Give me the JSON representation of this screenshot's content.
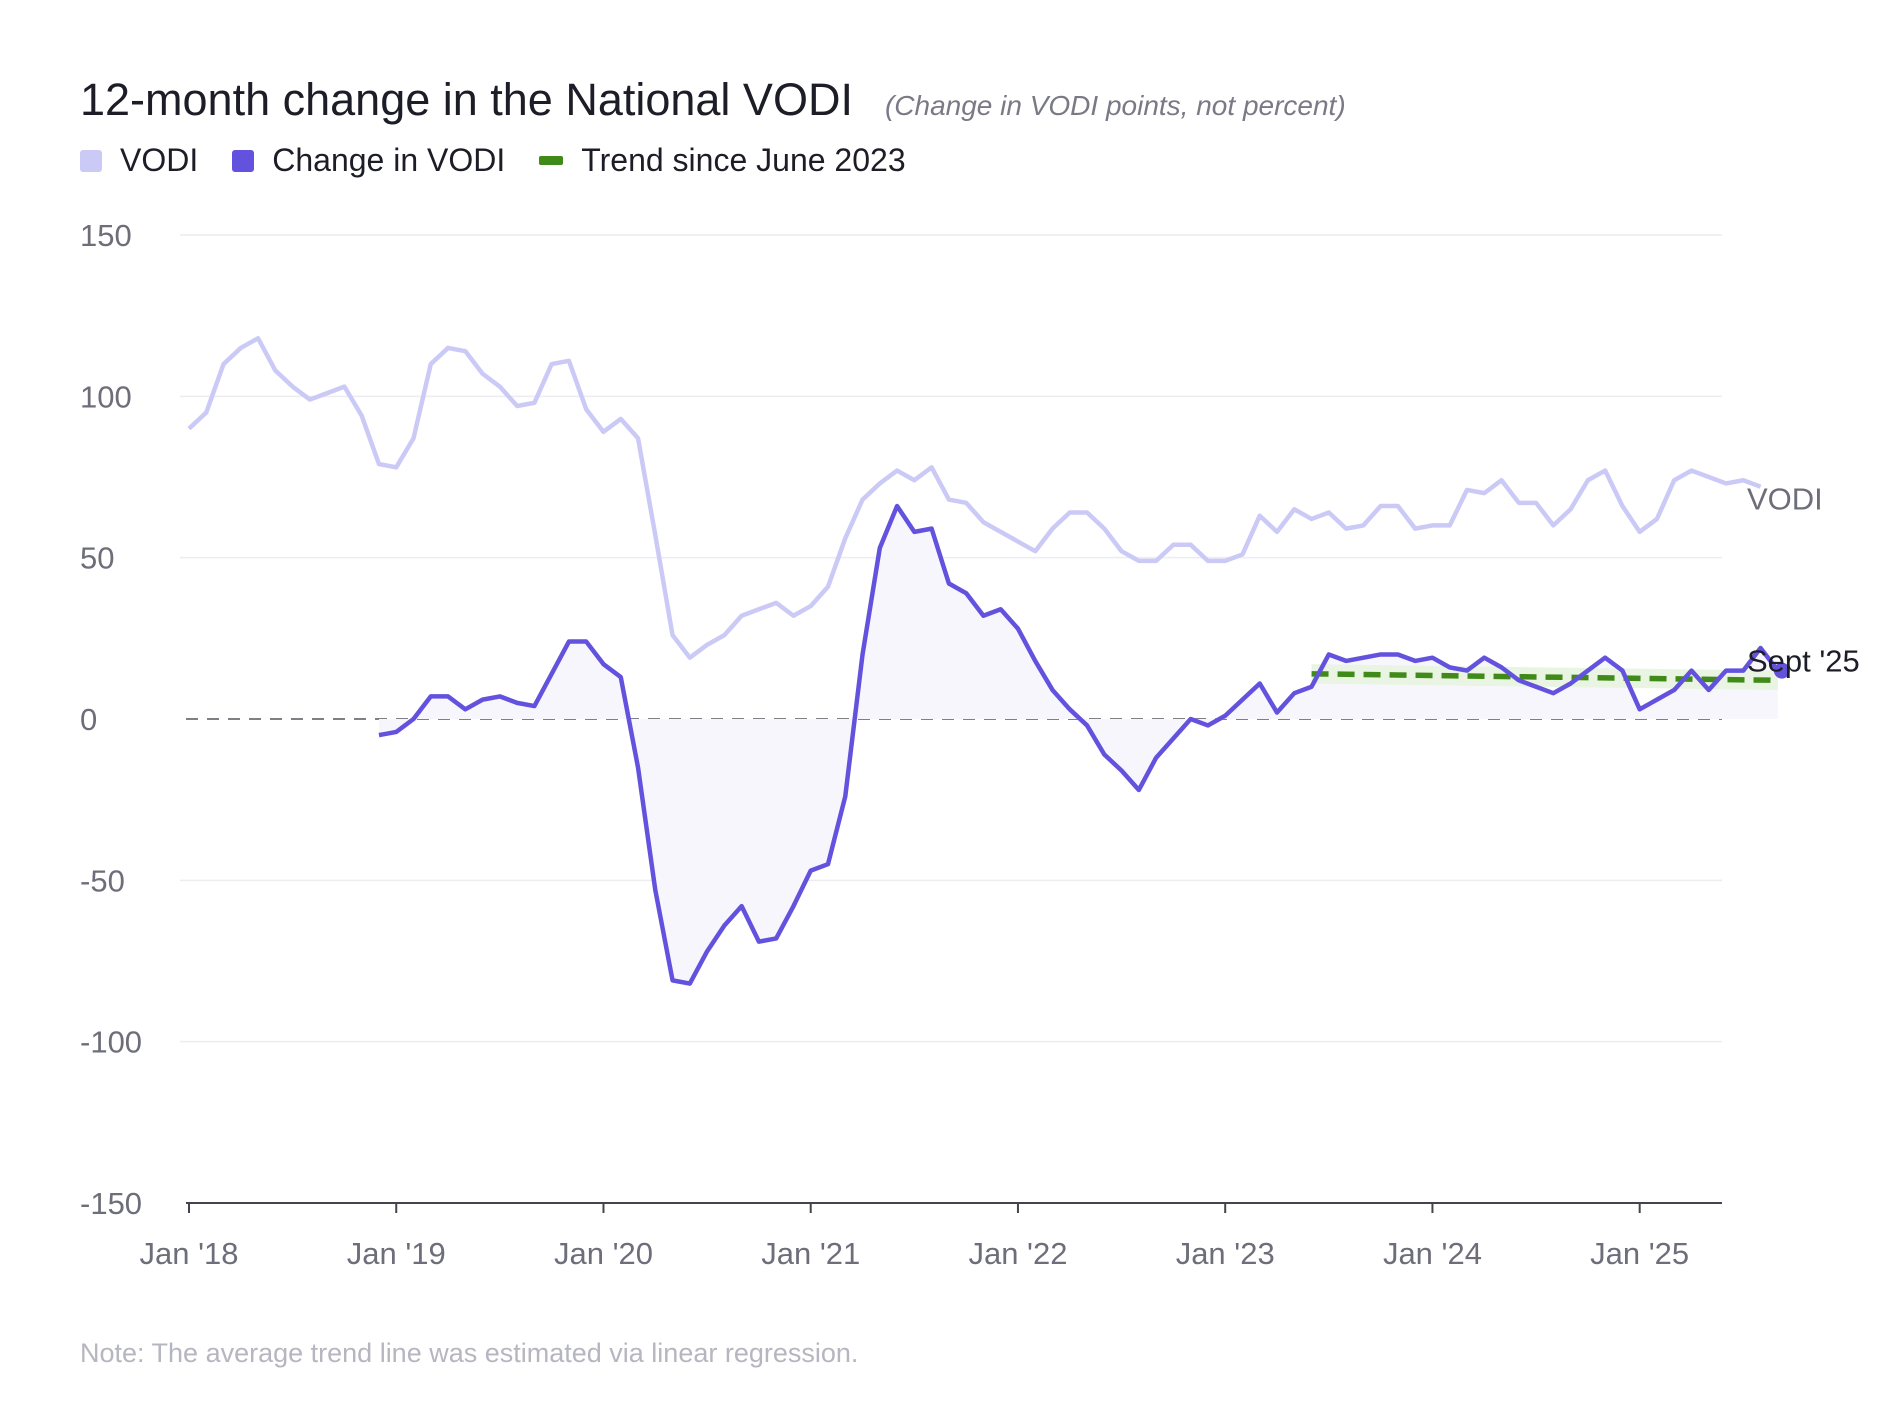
{
  "title": "12-month change in the National VODI",
  "subtitle": "(Change in VODI points, not percent)",
  "legend": [
    {
      "label": "VODI",
      "color": "#cbcaf7",
      "kind": "square"
    },
    {
      "label": "Change in VODI",
      "color": "#6352dd",
      "kind": "square"
    },
    {
      "label": "Trend since June 2023",
      "color": "#3f8a19",
      "kind": "line"
    }
  ],
  "note": "Note: The average trend line was estimated via linear regression.",
  "chart_data": {
    "type": "line",
    "ylim": [
      -150,
      150
    ],
    "y_ticks": [
      "150",
      "100",
      "50",
      "0",
      "-50",
      "-100",
      "-150"
    ],
    "x_ticks": [
      {
        "label": "Jan '18",
        "x": "2018-01"
      },
      {
        "label": "Jan '19",
        "x": "2019-01"
      },
      {
        "label": "Jan '20",
        "x": "2020-01"
      },
      {
        "label": "Jan '21",
        "x": "2021-01"
      },
      {
        "label": "Jan '22",
        "x": "2022-01"
      },
      {
        "label": "Jan '23",
        "x": "2023-01"
      },
      {
        "label": "Jan '24",
        "x": "2024-01"
      },
      {
        "label": "Jan '25",
        "x": "2025-01"
      }
    ],
    "xlim": [
      "2018-01",
      "2025-09"
    ],
    "grid": true,
    "zero_line": "dashed",
    "series": [
      {
        "name": "VODI",
        "color": "#cbcaf7",
        "end_label": "VODI",
        "x_start": "2018-01",
        "values": [
          90,
          95,
          110,
          115,
          118,
          108,
          103,
          99,
          101,
          103,
          94,
          79,
          78,
          87,
          110,
          115,
          114,
          107,
          103,
          97,
          98,
          110,
          111,
          96,
          89,
          93,
          87,
          57,
          26,
          19,
          23,
          26,
          32,
          34,
          36,
          32,
          35,
          41,
          56,
          68,
          73,
          77,
          74,
          78,
          68,
          67,
          61,
          58,
          55,
          52,
          59,
          64,
          64,
          59,
          52,
          49,
          49,
          54,
          54,
          49,
          49,
          51,
          63,
          58,
          65,
          62,
          64,
          59,
          60,
          66,
          66,
          59,
          60,
          60,
          71,
          70,
          74,
          67,
          67,
          60,
          65,
          74,
          77,
          66,
          58,
          62,
          74,
          77,
          75,
          73,
          74,
          72
        ]
      },
      {
        "name": "Change in VODI",
        "color": "#6352dd",
        "end_label": "Sept '25",
        "x_start": "2018-12",
        "values": [
          -5,
          -4,
          0,
          7,
          7,
          3,
          6,
          7,
          5,
          4,
          14,
          24,
          24,
          17,
          13,
          -15,
          -53,
          -81,
          -82,
          -72,
          -64,
          -58,
          -69,
          -68,
          -58,
          -47,
          -45,
          -24,
          20,
          53,
          66,
          58,
          59,
          42,
          39,
          32,
          34,
          28,
          18,
          9,
          3,
          -2,
          -11,
          -16,
          -22,
          -12,
          -6,
          0,
          -2,
          1,
          6,
          11,
          2,
          8,
          10,
          20,
          18,
          19,
          20,
          20,
          18,
          19,
          16,
          15,
          19,
          16,
          12,
          10,
          8,
          11,
          15,
          19,
          15,
          3,
          6,
          9,
          15,
          9,
          15,
          15,
          22,
          15
        ],
        "fill": "#f7f6fd"
      },
      {
        "name": "Trend since June 2023",
        "color": "#3f8a19",
        "style": "dashed",
        "x": [
          "2023-06",
          "2025-09"
        ],
        "values": [
          14,
          12
        ],
        "band_color": "#e9f4e3"
      }
    ]
  }
}
